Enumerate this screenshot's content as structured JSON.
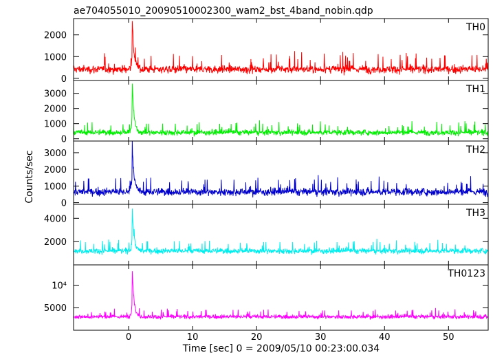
{
  "title": "ae704055010_20090510002300_wam2_bst_4band_nobin.qdp",
  "xlabel": "Time [sec] 0 = 2009/05/10 00:23:00.034",
  "ylabel": "Counts/sec",
  "chart_data": {
    "type": "line",
    "title": "ae704055010_20090510002300_wam2_bst_4band_nobin.qdp",
    "xlabel": "Time [sec] 0 = 2009/05/10 00:23:00.034",
    "ylabel": "Counts/sec",
    "xlim": [
      -8.6,
      56.2
    ],
    "x_ticks": [
      0,
      10,
      20,
      30,
      40,
      50
    ],
    "grid": false,
    "panels": [
      {
        "name": "TH0",
        "color": "#ff0000",
        "ylim": [
          -100,
          2750
        ],
        "y_ticks": [
          {
            "value": 0,
            "label": "0"
          },
          {
            "value": 1000,
            "label": "1000"
          },
          {
            "value": 2000,
            "label": "2000"
          }
        ],
        "baseline": 420,
        "noise_sigma": 230,
        "peak_time": 0.55,
        "peak_value": 2700
      },
      {
        "name": "TH1",
        "color": "#00ee00",
        "ylim": [
          -150,
          3850
        ],
        "y_ticks": [
          {
            "value": 0,
            "label": "0"
          },
          {
            "value": 1000,
            "label": "1000"
          },
          {
            "value": 2000,
            "label": "2000"
          },
          {
            "value": 3000,
            "label": "3000"
          }
        ],
        "baseline": 420,
        "noise_sigma": 230,
        "peak_time": 0.55,
        "peak_value": 3850
      },
      {
        "name": "TH2",
        "color": "#0000cc",
        "ylim": [
          -100,
          3700
        ],
        "y_ticks": [
          {
            "value": 0,
            "label": "0"
          },
          {
            "value": 1000,
            "label": "1000"
          },
          {
            "value": 2000,
            "label": "2000"
          },
          {
            "value": 3000,
            "label": "3000"
          }
        ],
        "baseline": 650,
        "noise_sigma": 290,
        "peak_time": 0.55,
        "peak_value": 3700
      },
      {
        "name": "TH3",
        "color": "#00eeee",
        "ylim": [
          0,
          5200
        ],
        "y_ticks": [
          {
            "value": 2000,
            "label": "2000"
          },
          {
            "value": 4000,
            "label": "4000"
          }
        ],
        "baseline": 1200,
        "noise_sigma": 300,
        "peak_time": 0.55,
        "peak_value": 5100
      },
      {
        "name": "TH0123",
        "color": "#ff00ff",
        "ylim": [
          0,
          14500
        ],
        "y_ticks": [
          {
            "value": 5000,
            "label": "5000"
          },
          {
            "value": 10000,
            "label": "10⁴"
          }
        ],
        "baseline": 3000,
        "noise_sigma": 550,
        "peak_time": 0.55,
        "peak_value": 14300
      }
    ]
  }
}
